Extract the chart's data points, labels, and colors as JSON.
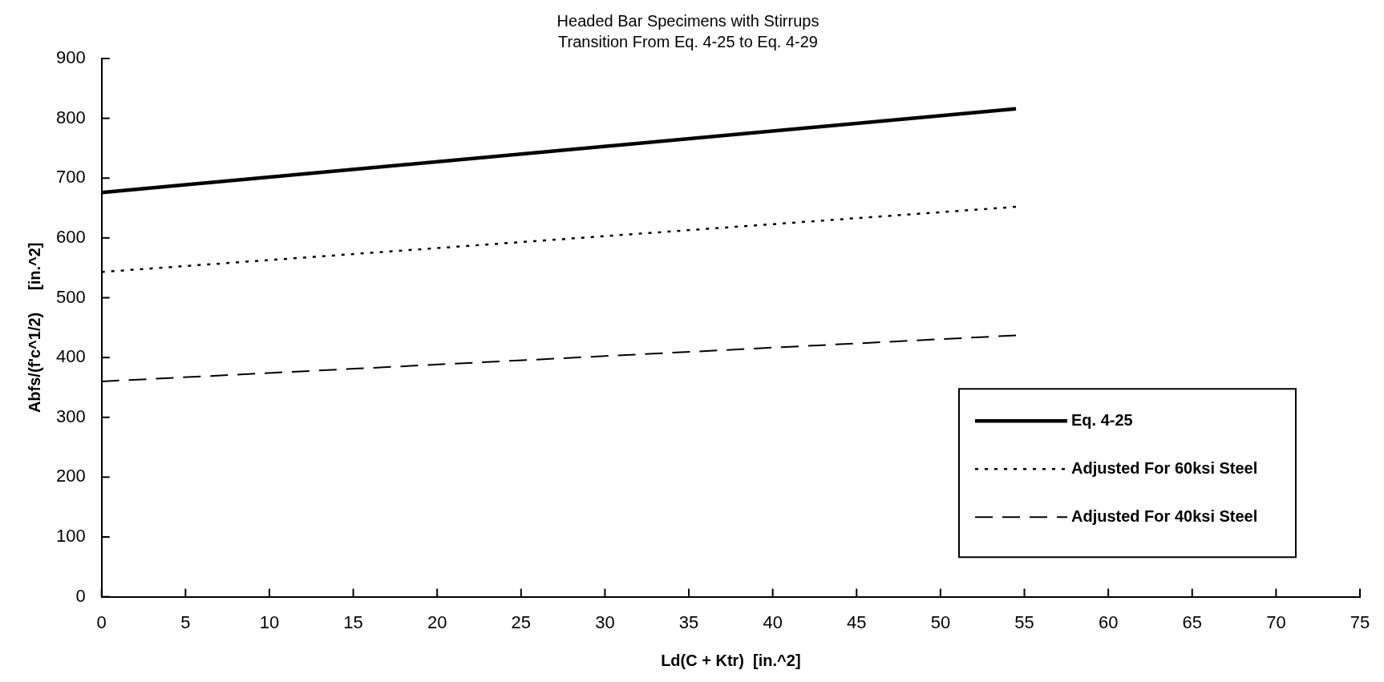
{
  "chart_data": {
    "type": "line",
    "title": "Headed Bar Specimens with Stirrups",
    "subtitle": "Transition From Eq. 4-25 to Eq. 4-29",
    "xlabel": "Ld(C + Ktr)  [in.^2]",
    "ylabel": "Abfs/(f'c^1/2)     [in.^2]",
    "x": [
      0,
      54.5
    ],
    "series": [
      {
        "name": "Eq. 4-25",
        "color": "#000000",
        "values": [
          676,
          816
        ],
        "line_style": "solid"
      },
      {
        "name": "Adjusted For 60ksi Steel",
        "color": "#000000",
        "values": [
          543,
          652
        ],
        "line_style": "dotted"
      },
      {
        "name": "Adjusted For 40ksi Steel",
        "color": "#000000",
        "values": [
          360,
          437
        ],
        "line_style": "dashed"
      }
    ],
    "xlim": [
      0,
      75
    ],
    "xticks": [
      0,
      5,
      10,
      15,
      20,
      25,
      30,
      35,
      40,
      45,
      50,
      55,
      60,
      65,
      70,
      75
    ],
    "ylim": [
      0,
      900
    ],
    "yticks": [
      0,
      100,
      200,
      300,
      400,
      500,
      600,
      700,
      800,
      900
    ],
    "grid": false,
    "legend": "right",
    "marker": "none"
  }
}
